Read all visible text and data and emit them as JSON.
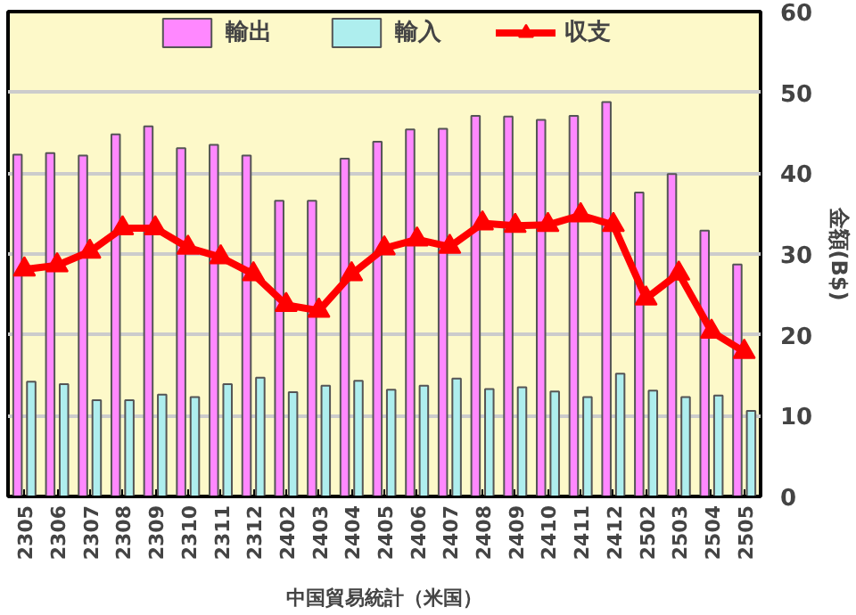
{
  "chart_data": {
    "type": "bar",
    "xlabel": "中国貿易統計（米国）",
    "ylabel": "金額(B$)",
    "categories": [
      "2305",
      "2306",
      "2307",
      "2308",
      "2309",
      "2310",
      "2311",
      "2312",
      "2402",
      "2403",
      "2404",
      "2405",
      "2406",
      "2407",
      "2408",
      "2409",
      "2410",
      "2411",
      "2412",
      "2502",
      "2503",
      "2504",
      "2505"
    ],
    "series": [
      {
        "name": "輸出",
        "color": "#ff88ff",
        "values": [
          42.3,
          42.5,
          42.2,
          44.8,
          45.8,
          43.1,
          43.5,
          42.2,
          36.6,
          36.6,
          41.8,
          43.9,
          45.4,
          45.5,
          47.1,
          47.0,
          46.6,
          47.1,
          48.8,
          37.6,
          39.9,
          32.9,
          28.7
        ]
      },
      {
        "name": "輸入",
        "color": "#aeeeee",
        "values": [
          14.2,
          13.9,
          11.9,
          11.9,
          12.6,
          12.3,
          13.9,
          14.7,
          12.9,
          13.7,
          14.3,
          13.2,
          13.7,
          14.6,
          13.3,
          13.5,
          13.0,
          12.3,
          15.2,
          13.1,
          12.3,
          12.5,
          10.6
        ]
      },
      {
        "name": "収支",
        "type": "line",
        "color": "#ff0000",
        "marker": "triangle",
        "values": [
          28.1,
          28.6,
          30.3,
          33.2,
          33.2,
          30.8,
          29.6,
          27.5,
          23.7,
          23.0,
          27.5,
          30.7,
          31.8,
          30.9,
          33.8,
          33.5,
          33.6,
          34.8,
          33.6,
          24.5,
          27.6,
          20.4,
          17.9
        ]
      }
    ],
    "ylim": [
      0,
      60
    ],
    "yticks": [
      0,
      10,
      20,
      30,
      40,
      50,
      60
    ],
    "grid": "y",
    "legend": "top"
  }
}
